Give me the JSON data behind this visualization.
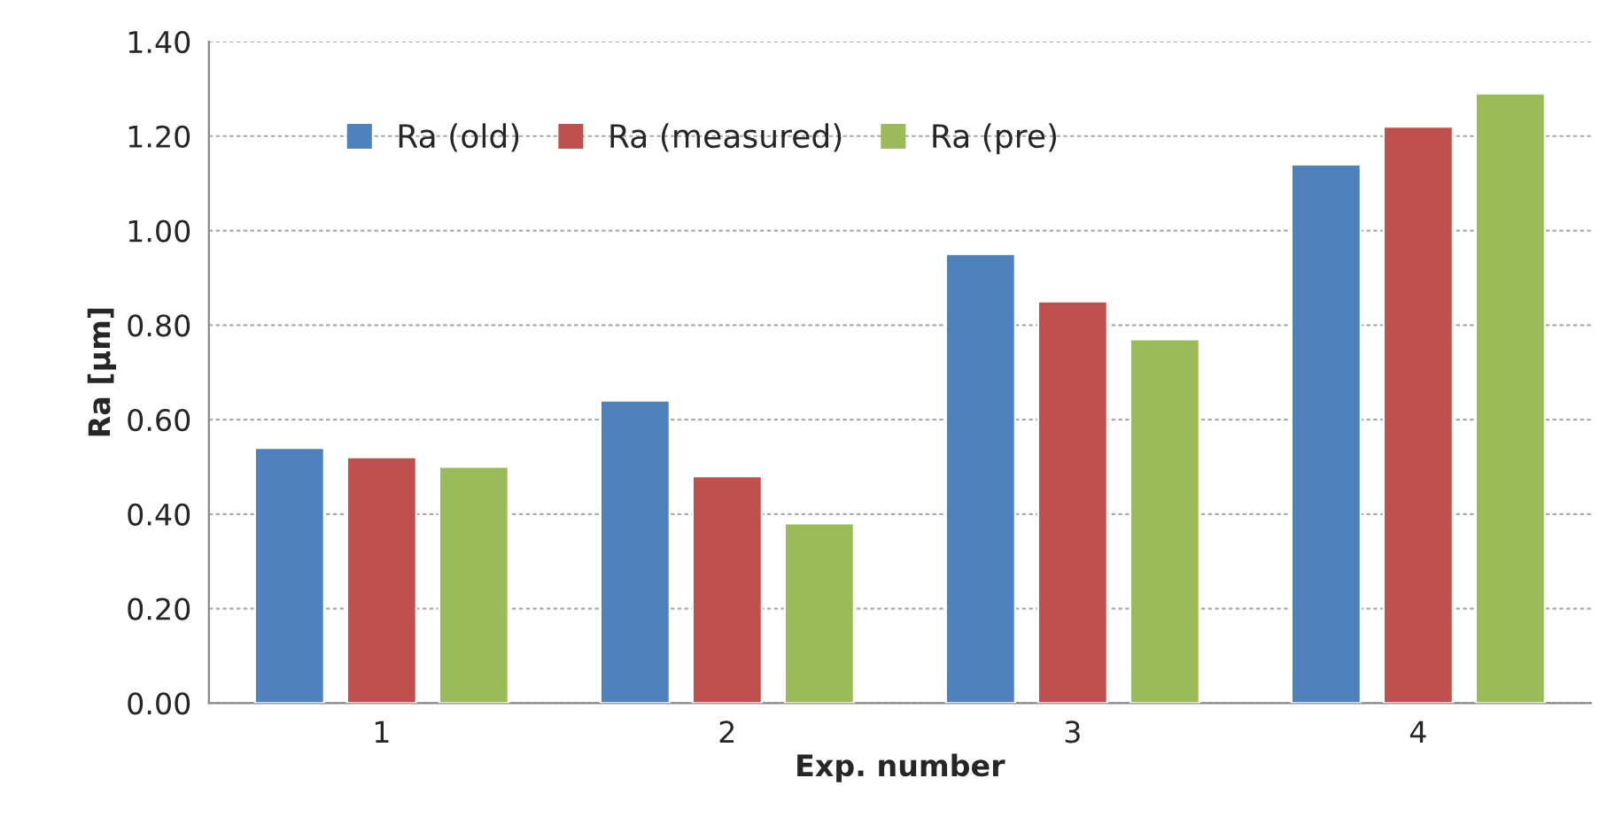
{
  "chart_data": {
    "type": "bar",
    "xlabel": "Exp. number",
    "ylabel": "Ra [µm]",
    "categories": [
      "1",
      "2",
      "3",
      "4"
    ],
    "series": [
      {
        "name": "Ra (old)",
        "color": "#4f81bd",
        "values": [
          0.54,
          0.64,
          0.95,
          1.14
        ]
      },
      {
        "name": "Ra (measured)",
        "color": "#c0504d",
        "values": [
          0.52,
          0.48,
          0.85,
          1.22
        ]
      },
      {
        "name": "Ra (pre)",
        "color": "#9bbb59",
        "values": [
          0.5,
          0.38,
          0.77,
          1.29
        ]
      }
    ],
    "ylim": [
      0,
      1.4
    ],
    "yticks": [
      {
        "value": 0,
        "label": "0.00"
      },
      {
        "value": 0.2,
        "label": "0.20"
      },
      {
        "value": 0.4,
        "label": "0.40"
      },
      {
        "value": 0.6,
        "label": "0.60"
      },
      {
        "value": 0.8,
        "label": "0.80"
      },
      {
        "value": 1.0,
        "label": "1.00"
      },
      {
        "value": 1.2,
        "label": "1.20"
      },
      {
        "value": 1.4,
        "label": "1.40"
      }
    ],
    "grid": "y",
    "legend": "top left"
  }
}
